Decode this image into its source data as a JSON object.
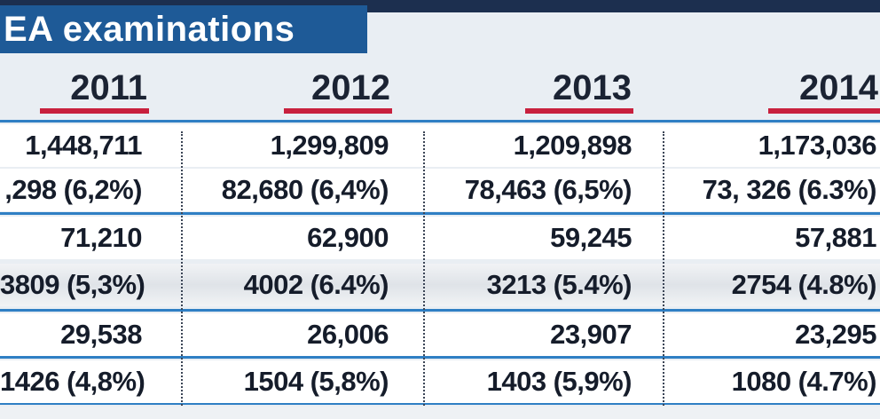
{
  "title": "EA examinations",
  "years": [
    "2011",
    "2012",
    "2013",
    "2014"
  ],
  "rows": [
    [
      "1,448,711",
      "1,299,809",
      "1,209,898",
      "1,173,036"
    ],
    [
      ",298 (6,2%)",
      "82,680 (6,4%)",
      "78,463 (6,5%)",
      "73, 326 (6.3%)"
    ],
    [
      "71,210",
      "62,900",
      "59,245",
      "57,881"
    ],
    [
      "3809 (5,3%)",
      "4002 (6.4%)",
      "3213 (5.4%)",
      "2754 (4.8%)"
    ],
    [
      "29,538",
      "26,006",
      "23,907",
      "23,295"
    ],
    [
      "1426 (4,8%)",
      "1504 (5,8%)",
      "1403 (5,9%)",
      "1080 (4.7%)"
    ]
  ],
  "colors": {
    "title_bg": "#1e5a97",
    "underline": "#c8203d",
    "rule": "#2f7fc4"
  }
}
